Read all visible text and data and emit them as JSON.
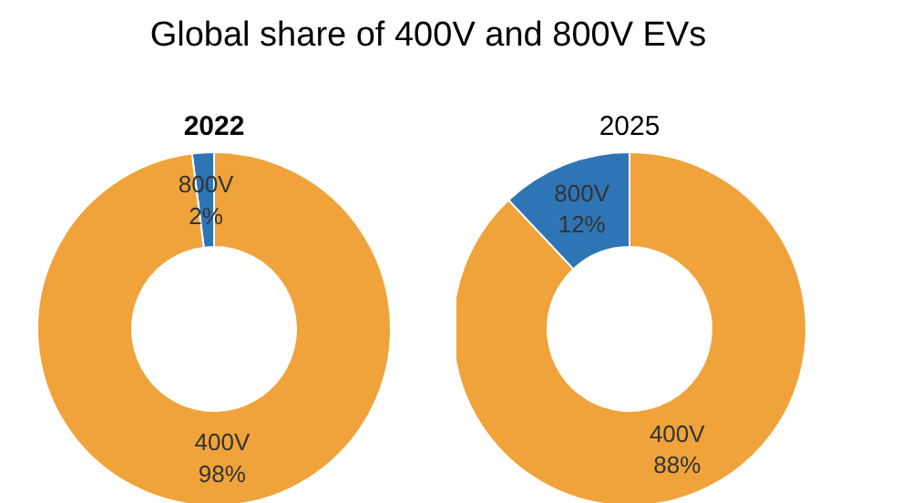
{
  "chart_data": [
    {
      "type": "donut",
      "title": "2022",
      "annotations": [
        "Global share of 400V and 800V EVs"
      ],
      "categories": [
        "800V",
        "400V"
      ],
      "values": [
        2,
        98
      ],
      "colors": [
        "#2e75b6",
        "#f0a33a"
      ],
      "value_labels": [
        "2%",
        "98%"
      ]
    },
    {
      "type": "donut",
      "title": "2025",
      "categories": [
        "800V",
        "400V"
      ],
      "values": [
        12,
        88
      ],
      "colors": [
        "#2e75b6",
        "#f0a33a"
      ],
      "value_labels": [
        "12%",
        "88%"
      ]
    }
  ]
}
